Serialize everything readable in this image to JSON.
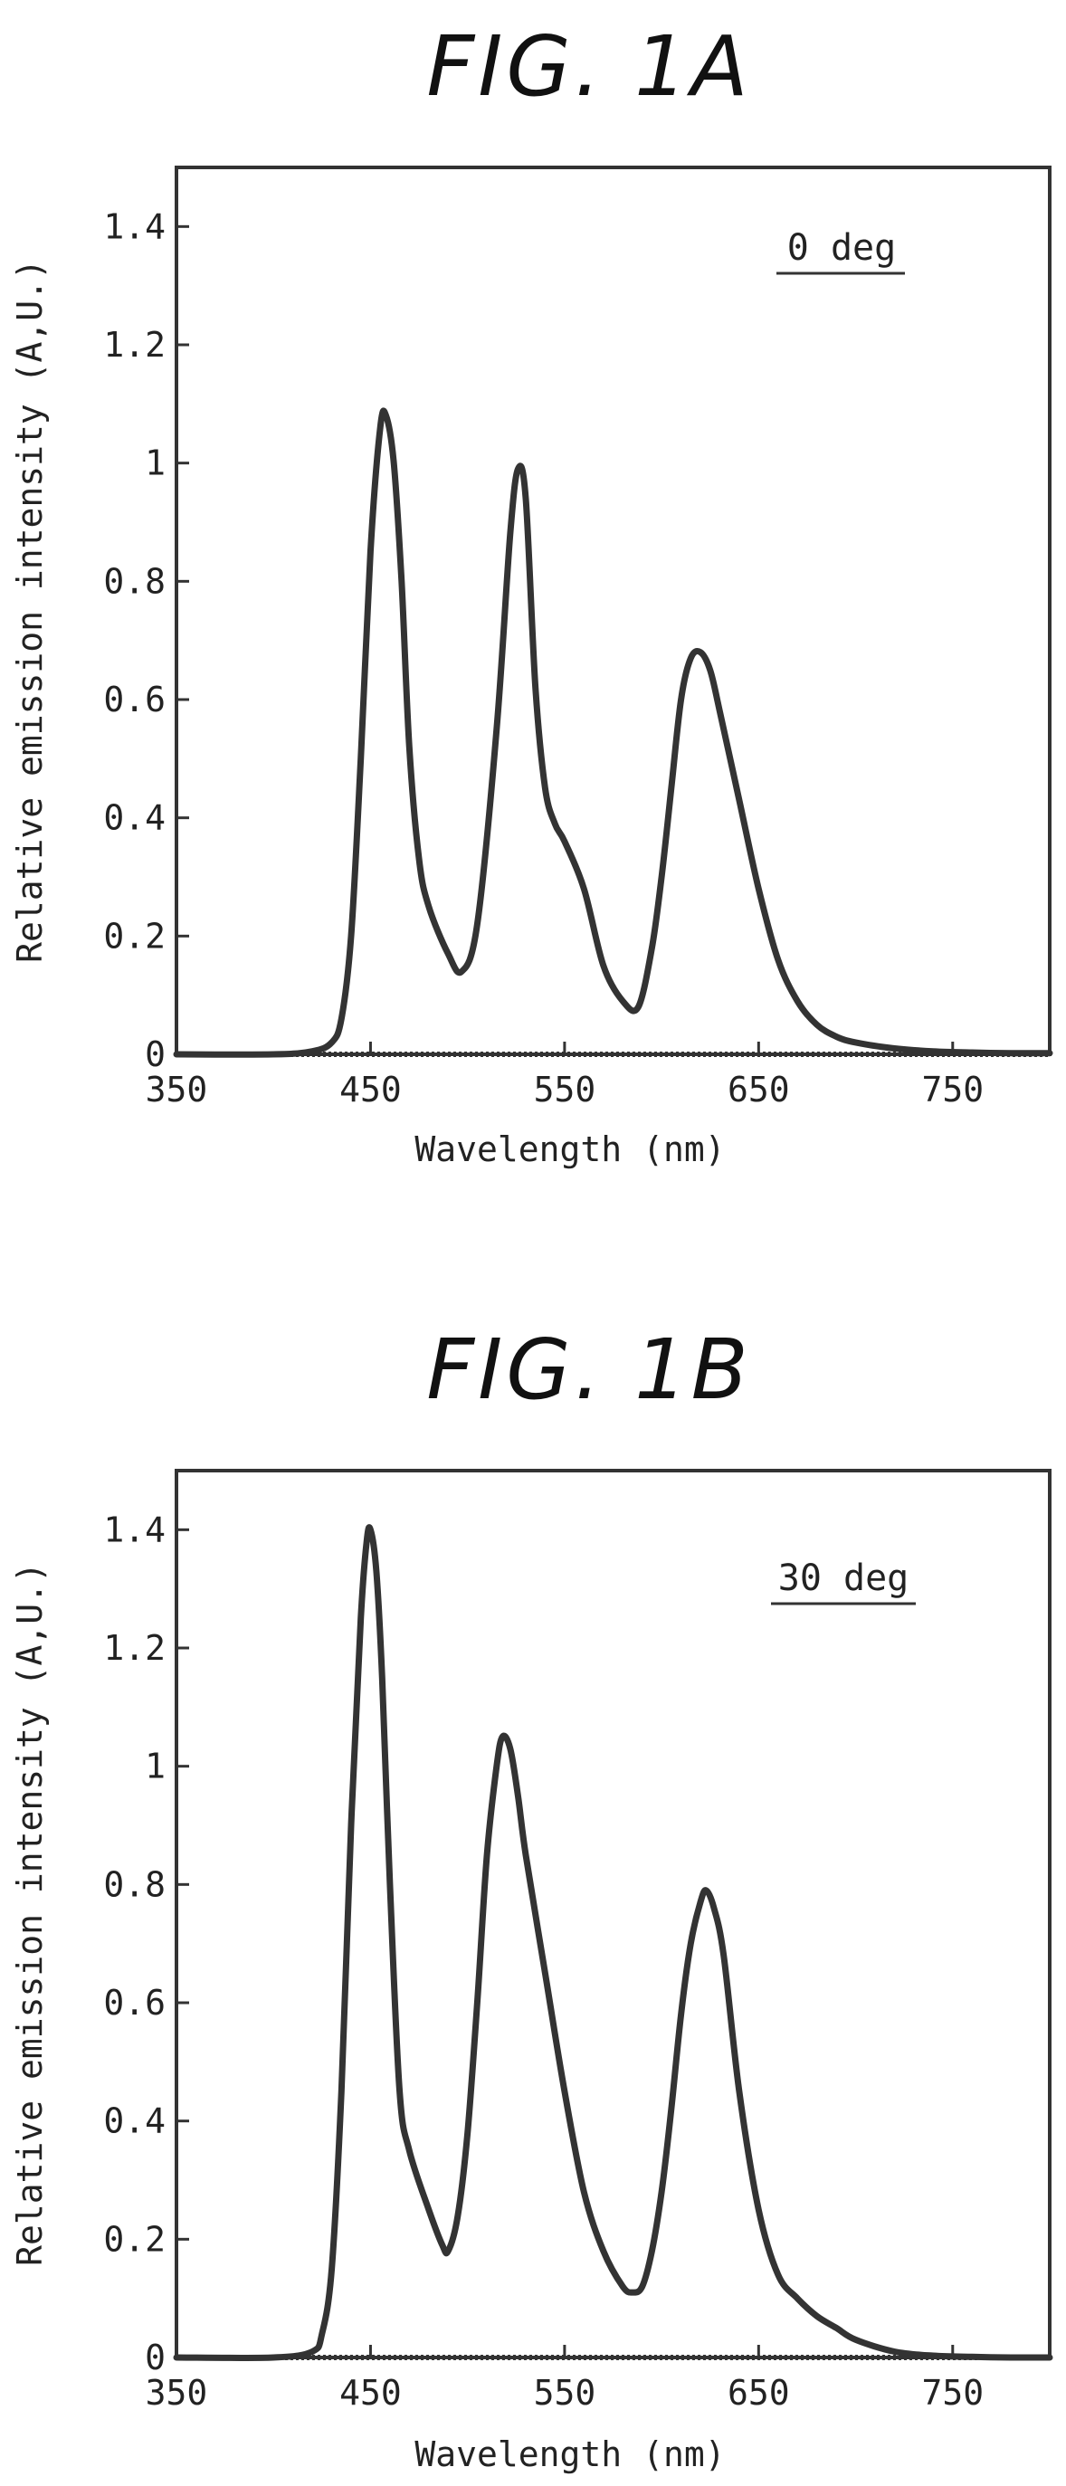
{
  "chart_data": [
    {
      "type": "line",
      "title": "FIG. 1A",
      "annotation": "0 deg",
      "xlabel": "Wavelength (nm)",
      "ylabel": "Relative emission intensity (A,U.)",
      "xlim": [
        350,
        800
      ],
      "ylim": [
        0,
        1.5
      ],
      "xticks": [
        "350",
        "450",
        "550",
        "650",
        "750"
      ],
      "yticks": [
        "0",
        "0.2",
        "0.4",
        "0.6",
        "0.8",
        "1",
        "1.2",
        "1.4"
      ],
      "x": [
        350,
        400,
        420,
        430,
        435,
        440,
        445,
        450,
        455,
        458,
        462,
        466,
        470,
        475,
        480,
        490,
        497,
        505,
        515,
        522,
        526,
        530,
        535,
        540,
        545,
        550,
        560,
        570,
        580,
        588,
        595,
        600,
        605,
        610,
        615,
        620,
        625,
        630,
        640,
        650,
        660,
        670,
        680,
        690,
        700,
        720,
        740,
        760,
        780,
        800
      ],
      "y": [
        0,
        0,
        0.005,
        0.02,
        0.06,
        0.2,
        0.5,
        0.85,
        1.06,
        1.08,
        1.0,
        0.8,
        0.52,
        0.33,
        0.25,
        0.17,
        0.14,
        0.22,
        0.55,
        0.88,
        0.99,
        0.94,
        0.62,
        0.45,
        0.39,
        0.36,
        0.28,
        0.15,
        0.09,
        0.08,
        0.18,
        0.3,
        0.45,
        0.6,
        0.67,
        0.68,
        0.65,
        0.58,
        0.43,
        0.28,
        0.16,
        0.09,
        0.05,
        0.03,
        0.02,
        0.01,
        0.005,
        0.003,
        0.002,
        0.002
      ]
    },
    {
      "type": "line",
      "title": "FIG. 1B",
      "annotation": "30 deg",
      "xlabel": "Wavelength (nm)",
      "ylabel": "Relative emission intensity (A,U.)",
      "xlim": [
        350,
        800
      ],
      "ylim": [
        0,
        1.5
      ],
      "xticks": [
        "350",
        "450",
        "550",
        "650",
        "750"
      ],
      "yticks": [
        "0",
        "0.2",
        "0.4",
        "0.6",
        "0.8",
        "1",
        "1.2",
        "1.4"
      ],
      "x": [
        350,
        400,
        420,
        425,
        430,
        435,
        440,
        445,
        448,
        450,
        453,
        456,
        460,
        465,
        470,
        480,
        487,
        490,
        495,
        500,
        505,
        510,
        515,
        518,
        522,
        526,
        530,
        540,
        550,
        560,
        570,
        580,
        585,
        590,
        595,
        600,
        605,
        610,
        615,
        620,
        623,
        627,
        632,
        640,
        650,
        660,
        670,
        680,
        690,
        700,
        720,
        740,
        760,
        780,
        800
      ],
      "y": [
        0,
        0,
        0.01,
        0.04,
        0.15,
        0.45,
        0.9,
        1.25,
        1.38,
        1.4,
        1.33,
        1.15,
        0.8,
        0.45,
        0.35,
        0.25,
        0.19,
        0.18,
        0.24,
        0.38,
        0.6,
        0.85,
        1.0,
        1.05,
        1.03,
        0.95,
        0.85,
        0.65,
        0.45,
        0.28,
        0.18,
        0.12,
        0.11,
        0.12,
        0.18,
        0.28,
        0.42,
        0.58,
        0.7,
        0.77,
        0.79,
        0.76,
        0.68,
        0.45,
        0.25,
        0.14,
        0.1,
        0.07,
        0.05,
        0.03,
        0.01,
        0.003,
        0.001,
        0.0,
        0.0
      ]
    }
  ]
}
